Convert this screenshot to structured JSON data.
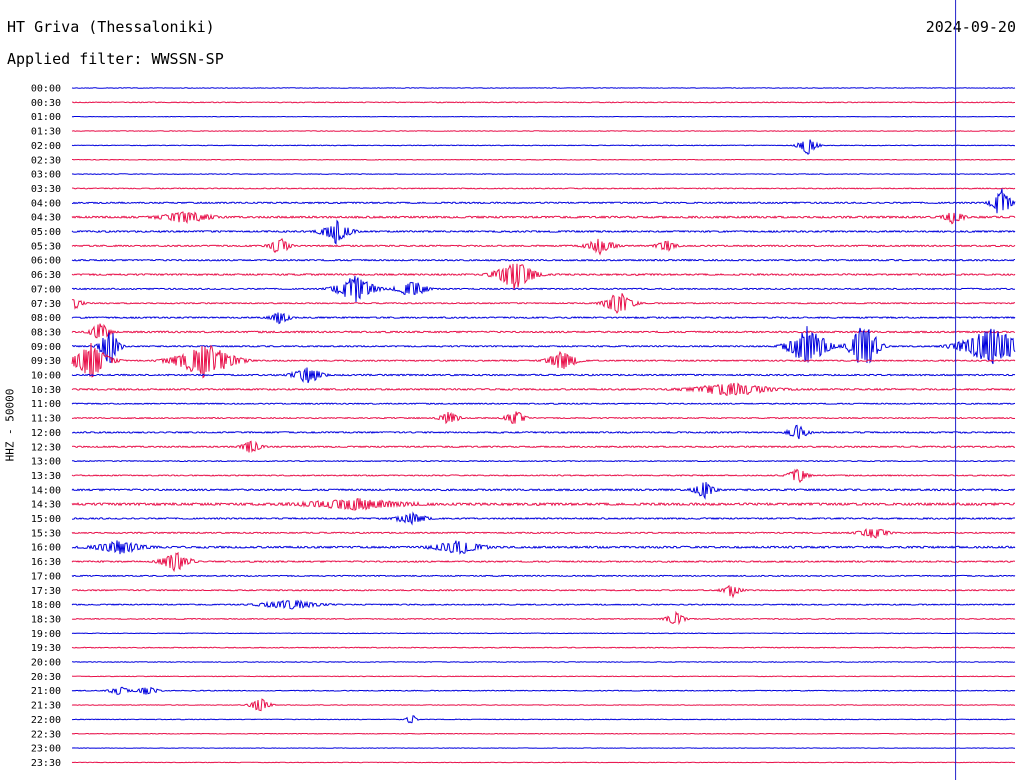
{
  "header": {
    "station": "HT Griva (Thessaloniki)",
    "date": "2024-09-20",
    "filter": "Applied filter: WWSSN-SP"
  },
  "channel_label": "HHZ - 50000",
  "colors": {
    "even_trace": "#0000dd",
    "odd_trace": "#e8104a",
    "cursor": "#2222cc"
  },
  "chart_data": {
    "type": "line",
    "title": "HT Griva (Thessaloniki)",
    "subtitle": "Applied filter: WWSSN-SP",
    "ylabel": "HHZ - 50000",
    "xlabel": "",
    "row_labels": [
      "00:00",
      "00:30",
      "01:00",
      "01:30",
      "02:00",
      "02:30",
      "03:00",
      "03:30",
      "04:00",
      "04:30",
      "05:00",
      "05:30",
      "06:00",
      "06:30",
      "07:00",
      "07:30",
      "08:00",
      "08:30",
      "09:00",
      "09:30",
      "10:00",
      "10:30",
      "11:00",
      "11:30",
      "12:00",
      "12:30",
      "13:00",
      "13:30",
      "14:00",
      "14:30",
      "15:00",
      "15:30",
      "16:00",
      "16:30",
      "17:00",
      "17:30",
      "18:00",
      "18:30",
      "19:00",
      "19:30",
      "20:00",
      "20:30",
      "21:00",
      "21:30",
      "22:00",
      "22:30",
      "23:00",
      "23:30"
    ],
    "trace_colors": [
      "#0000dd",
      "#e8104a"
    ],
    "current_time_fraction": 0.937,
    "noise_level": [
      0.15,
      0.25,
      0.15,
      0.2,
      0.2,
      0.2,
      0.2,
      0.3,
      0.45,
      0.6,
      0.5,
      0.45,
      0.45,
      0.5,
      0.4,
      0.35,
      0.45,
      0.5,
      0.4,
      0.4,
      0.45,
      0.5,
      0.35,
      0.35,
      0.45,
      0.45,
      0.3,
      0.35,
      0.55,
      0.75,
      0.45,
      0.4,
      0.6,
      0.45,
      0.35,
      0.35,
      0.35,
      0.3,
      0.2,
      0.25,
      0.2,
      0.2,
      0.25,
      0.2,
      0.2,
      0.2,
      0.15,
      0.15
    ],
    "events": [
      {
        "row": 4,
        "at": 0.78,
        "amplitude": 10,
        "width": 0.02
      },
      {
        "row": 8,
        "at": 0.985,
        "amplitude": 16,
        "width": 0.02
      },
      {
        "row": 9,
        "at": 0.12,
        "amplitude": 6,
        "width": 0.05
      },
      {
        "row": 9,
        "at": 0.935,
        "amplitude": 7,
        "width": 0.02
      },
      {
        "row": 10,
        "at": 0.28,
        "amplitude": 12,
        "width": 0.03
      },
      {
        "row": 11,
        "at": 0.22,
        "amplitude": 10,
        "width": 0.02
      },
      {
        "row": 11,
        "at": 0.56,
        "amplitude": 8,
        "width": 0.03
      },
      {
        "row": 11,
        "at": 0.63,
        "amplitude": 6,
        "width": 0.02
      },
      {
        "row": 13,
        "at": 0.47,
        "amplitude": 16,
        "width": 0.04
      },
      {
        "row": 14,
        "at": 0.3,
        "amplitude": 14,
        "width": 0.04
      },
      {
        "row": 14,
        "at": 0.36,
        "amplitude": 10,
        "width": 0.03
      },
      {
        "row": 15,
        "at": 0.0,
        "amplitude": 8,
        "width": 0.02
      },
      {
        "row": 15,
        "at": 0.58,
        "amplitude": 12,
        "width": 0.03
      },
      {
        "row": 16,
        "at": 0.22,
        "amplitude": 7,
        "width": 0.02
      },
      {
        "row": 17,
        "at": 0.03,
        "amplitude": 10,
        "width": 0.02
      },
      {
        "row": 18,
        "at": 0.04,
        "amplitude": 20,
        "width": 0.02
      },
      {
        "row": 18,
        "at": 0.78,
        "amplitude": 22,
        "width": 0.04
      },
      {
        "row": 18,
        "at": 0.84,
        "amplitude": 26,
        "width": 0.03
      },
      {
        "row": 18,
        "at": 0.975,
        "amplitude": 20,
        "width": 0.065
      },
      {
        "row": 19,
        "at": 0.02,
        "amplitude": 18,
        "width": 0.04
      },
      {
        "row": 19,
        "at": 0.14,
        "amplitude": 20,
        "width": 0.06
      },
      {
        "row": 19,
        "at": 0.52,
        "amplitude": 10,
        "width": 0.03
      },
      {
        "row": 20,
        "at": 0.25,
        "amplitude": 9,
        "width": 0.03
      },
      {
        "row": 21,
        "at": 0.7,
        "amplitude": 7,
        "width": 0.08
      },
      {
        "row": 23,
        "at": 0.4,
        "amplitude": 7,
        "width": 0.02
      },
      {
        "row": 23,
        "at": 0.47,
        "amplitude": 8,
        "width": 0.02
      },
      {
        "row": 24,
        "at": 0.77,
        "amplitude": 8,
        "width": 0.02
      },
      {
        "row": 25,
        "at": 0.19,
        "amplitude": 7,
        "width": 0.02
      },
      {
        "row": 27,
        "at": 0.77,
        "amplitude": 8,
        "width": 0.02
      },
      {
        "row": 28,
        "at": 0.67,
        "amplitude": 10,
        "width": 0.02
      },
      {
        "row": 29,
        "at": 0.3,
        "amplitude": 6,
        "width": 0.1
      },
      {
        "row": 30,
        "at": 0.36,
        "amplitude": 7,
        "width": 0.03
      },
      {
        "row": 31,
        "at": 0.85,
        "amplitude": 6,
        "width": 0.03
      },
      {
        "row": 32,
        "at": 0.05,
        "amplitude": 7,
        "width": 0.05
      },
      {
        "row": 32,
        "at": 0.41,
        "amplitude": 7,
        "width": 0.05
      },
      {
        "row": 33,
        "at": 0.11,
        "amplitude": 10,
        "width": 0.03
      },
      {
        "row": 35,
        "at": 0.7,
        "amplitude": 7,
        "width": 0.02
      },
      {
        "row": 36,
        "at": 0.23,
        "amplitude": 5,
        "width": 0.06
      },
      {
        "row": 37,
        "at": 0.64,
        "amplitude": 7,
        "width": 0.02
      },
      {
        "row": 42,
        "at": 0.05,
        "amplitude": 5,
        "width": 0.02
      },
      {
        "row": 42,
        "at": 0.08,
        "amplitude": 5,
        "width": 0.02
      },
      {
        "row": 43,
        "at": 0.2,
        "amplitude": 8,
        "width": 0.02
      },
      {
        "row": 44,
        "at": 0.36,
        "amplitude": 6,
        "width": 0.01
      }
    ]
  }
}
